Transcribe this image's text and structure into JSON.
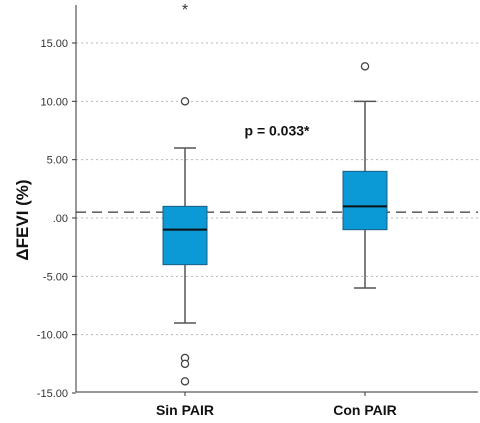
{
  "chart_data": {
    "type": "boxplot",
    "ylabel": "ΔFEVI  (%)",
    "ylim": [
      -15,
      18
    ],
    "yticks": [
      {
        "value": 15,
        "label": "15.00"
      },
      {
        "value": 10,
        "label": "10.00"
      },
      {
        "value": 5,
        "label": "5.00"
      },
      {
        "value": 0,
        "label": ".00"
      },
      {
        "value": -5,
        "label": "-5.00"
      },
      {
        "value": -10,
        "label": "-10.00"
      },
      {
        "value": -15,
        "label": "-15.00"
      }
    ],
    "reference_line": 0.5,
    "categories": [
      "Sin PAIR",
      "Con PAIR"
    ],
    "boxes": [
      {
        "name": "Sin PAIR",
        "whisker_low": -9,
        "q1": -4,
        "median": -1,
        "q3": 1,
        "whisker_high": 6,
        "outliers": [
          10,
          -12,
          -12.5,
          -14
        ],
        "extremes": [
          18
        ]
      },
      {
        "name": "Con PAIR",
        "whisker_low": -6,
        "q1": -1,
        "median": 1,
        "q3": 4,
        "whisker_high": 10,
        "outliers": [
          13
        ],
        "extremes": []
      }
    ],
    "annotation": "p = 0.033*",
    "annotation_x": 0.5,
    "annotation_y": 7.5,
    "grid": true,
    "colors": {
      "box": "#0b9ad6",
      "box_stroke": "#1c5f82",
      "whisker": "#555555",
      "median": "#111111",
      "grid": "#b8b8b8",
      "reference": "#666666"
    }
  }
}
